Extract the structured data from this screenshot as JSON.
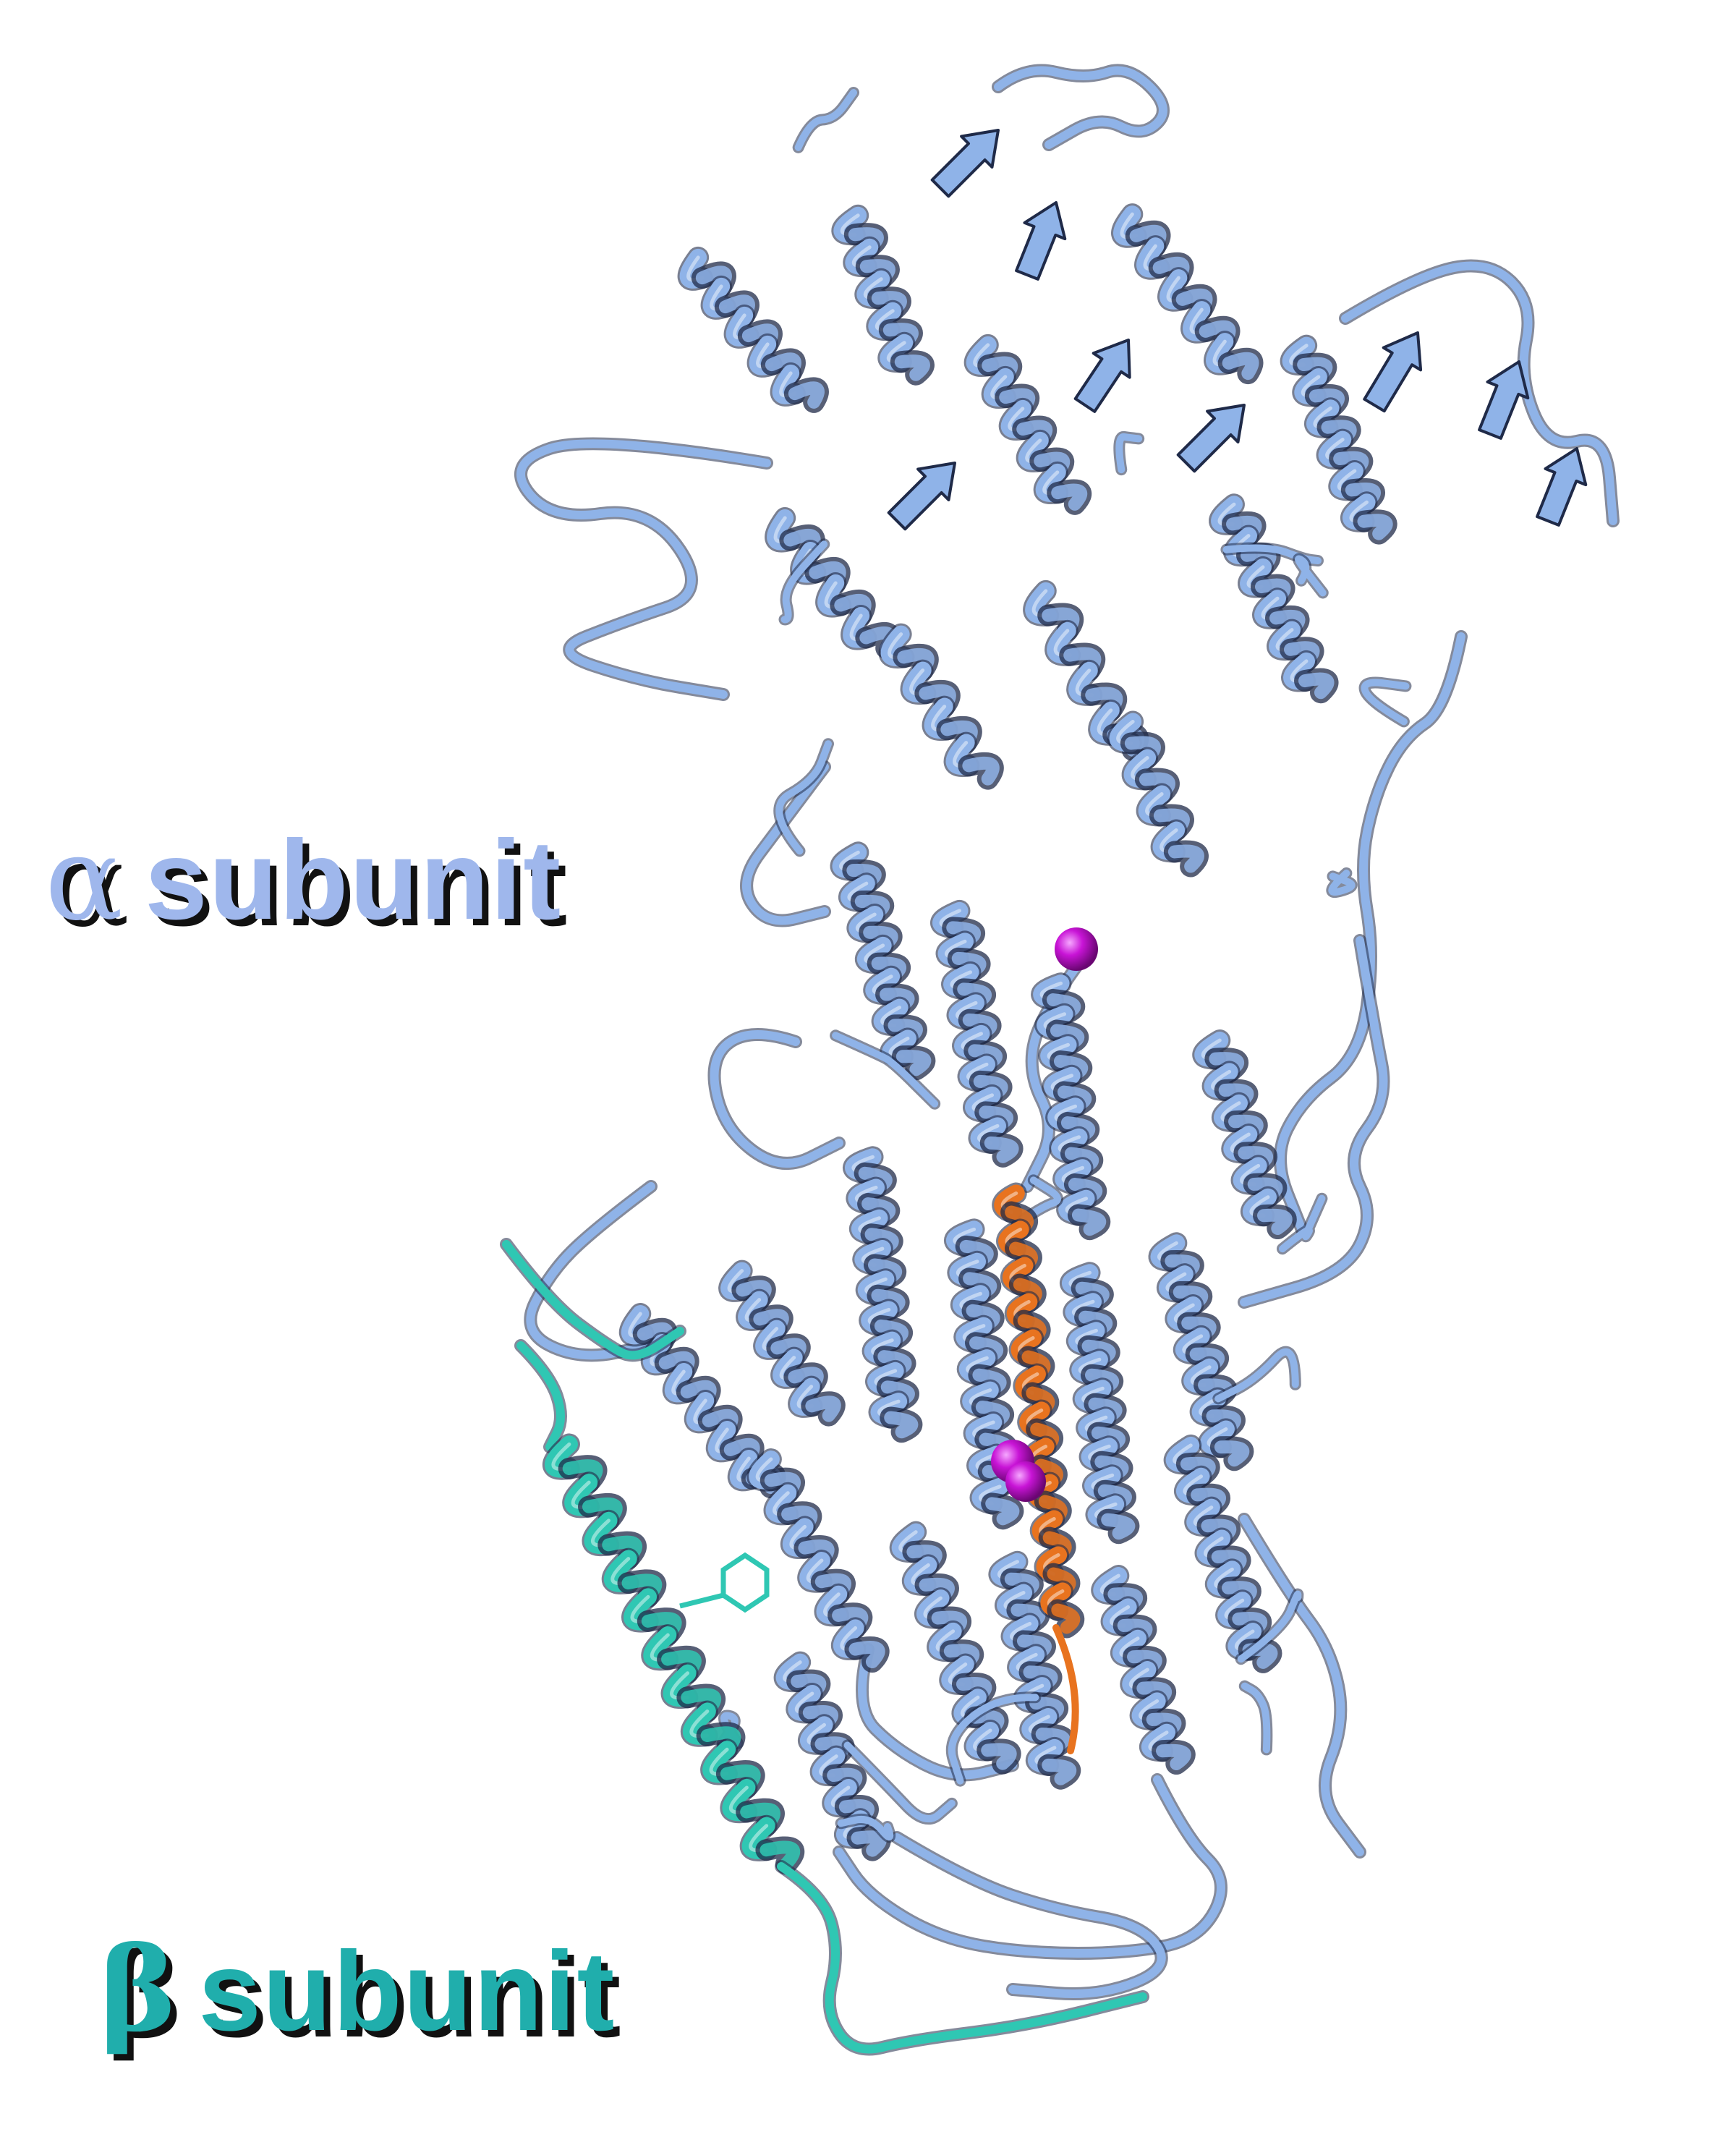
{
  "labels": {
    "alpha": {
      "greek": "α",
      "text": "subunit"
    },
    "beta": {
      "greek": "β",
      "text": "subunit"
    }
  },
  "colors": {
    "background": "#ffffff",
    "alpha_chain": "#8fb3e8",
    "alpha_chain_dark": "#1f2a48",
    "beta_chain": "#2fc7b3",
    "alpha_label": "#9fb7ec",
    "beta_label": "#20aeac",
    "ligand": "#e8731f",
    "ion": "#c814d6",
    "label_shadow": "#111111"
  },
  "illustration": {
    "alpha_chain": "alpha-subunit-ribbon",
    "beta_chain": "beta-subunit-ribbon",
    "ligand": "ligand-strand",
    "ions": [
      "ion-sphere-upper",
      "ion-sphere-lower"
    ]
  }
}
